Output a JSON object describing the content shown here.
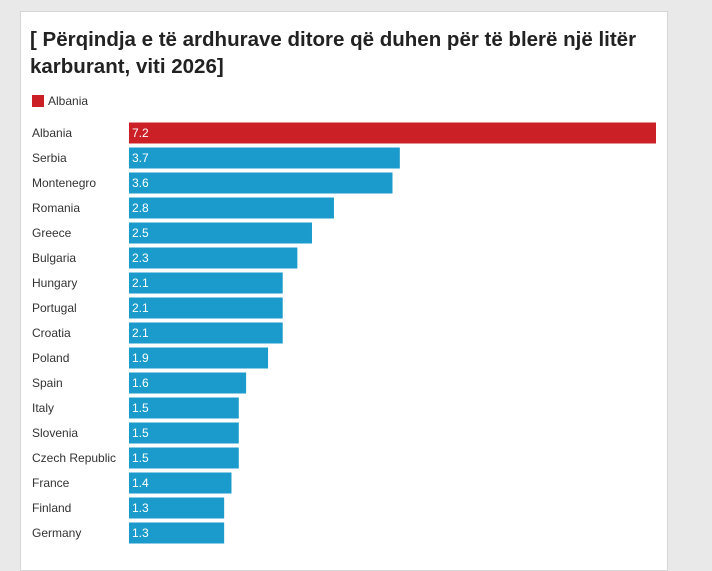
{
  "chart_data": {
    "type": "bar",
    "orientation": "horizontal",
    "title": "[ Përqindja e të ardhurave ditore që duhen për të blerë një litër karburant, viti 2026]",
    "legend": [
      {
        "name": "Albania",
        "color": "#cc2027"
      }
    ],
    "categories": [
      "Albania",
      "Serbia",
      "Montenegro",
      "Romania",
      "Greece",
      "Bulgaria",
      "Hungary",
      "Portugal",
      "Croatia",
      "Poland",
      "Spain",
      "Italy",
      "Slovenia",
      "Czech Republic",
      "France",
      "Finland",
      "Germany"
    ],
    "values": [
      7.2,
      3.7,
      3.6,
      2.8,
      2.5,
      2.3,
      2.1,
      2.1,
      2.1,
      1.9,
      1.6,
      1.5,
      1.5,
      1.5,
      1.4,
      1.3,
      1.3
    ],
    "value_labels": [
      "7.2",
      "3.7",
      "3.6",
      "2.8",
      "2.5",
      "2.3",
      "2.1",
      "2.1",
      "2.1",
      "1.9",
      "1.6",
      "1.5",
      "1.5",
      "1.5",
      "1.4",
      "1.3",
      "1.3"
    ],
    "highlight_category": "Albania",
    "colors": {
      "highlight": "#cc2027",
      "default": "#1a9bcb"
    },
    "xlim": [
      0,
      7.2
    ],
    "grid": false,
    "xlabel": "",
    "ylabel": ""
  }
}
